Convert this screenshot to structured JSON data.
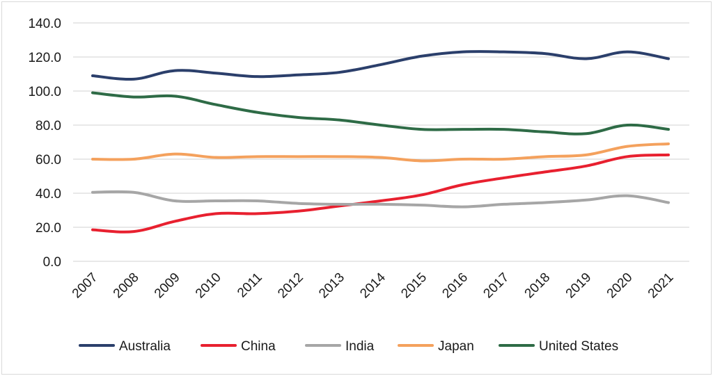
{
  "chart_data": {
    "type": "line",
    "title": "",
    "xlabel": "",
    "ylabel": "",
    "ylim": [
      0,
      140
    ],
    "yticks": [
      "0.0",
      "20.0",
      "40.0",
      "60.0",
      "80.0",
      "100.0",
      "120.0",
      "140.0"
    ],
    "categories": [
      "2007",
      "2008",
      "2009",
      "2010",
      "2011",
      "2012",
      "2013",
      "2014",
      "2015",
      "2016",
      "2017",
      "2018",
      "2019",
      "2020",
      "2021"
    ],
    "grid": true,
    "legend_position": "bottom",
    "series": [
      {
        "name": "Australia",
        "color": "#2b3f6b",
        "values": [
          109,
          107,
          112,
          110.5,
          108.5,
          109.5,
          111,
          115.5,
          120.5,
          123,
          123,
          122,
          119,
          123,
          119
        ]
      },
      {
        "name": "China",
        "color": "#e8202f",
        "values": [
          18.5,
          17.5,
          23.5,
          28,
          28,
          29.5,
          32.5,
          35.5,
          39,
          45,
          49,
          52.5,
          56,
          61.5,
          62.5
        ]
      },
      {
        "name": "India",
        "color": "#a6a6a6",
        "values": [
          40.5,
          40.5,
          35.5,
          35.5,
          35.5,
          34,
          33.5,
          33.5,
          33,
          32,
          33.5,
          34.5,
          36,
          38.5,
          34.5
        ]
      },
      {
        "name": "Japan",
        "color": "#f4a15d",
        "values": [
          60,
          60,
          63,
          61,
          61.5,
          61.5,
          61.5,
          61,
          59,
          60,
          60,
          61.5,
          62.5,
          67.5,
          69
        ]
      },
      {
        "name": "United States",
        "color": "#2e6b46",
        "values": [
          99,
          96.5,
          97,
          92,
          87.5,
          84.5,
          83,
          80,
          77.5,
          77.5,
          77.5,
          76,
          75,
          80,
          77.5
        ]
      }
    ]
  }
}
